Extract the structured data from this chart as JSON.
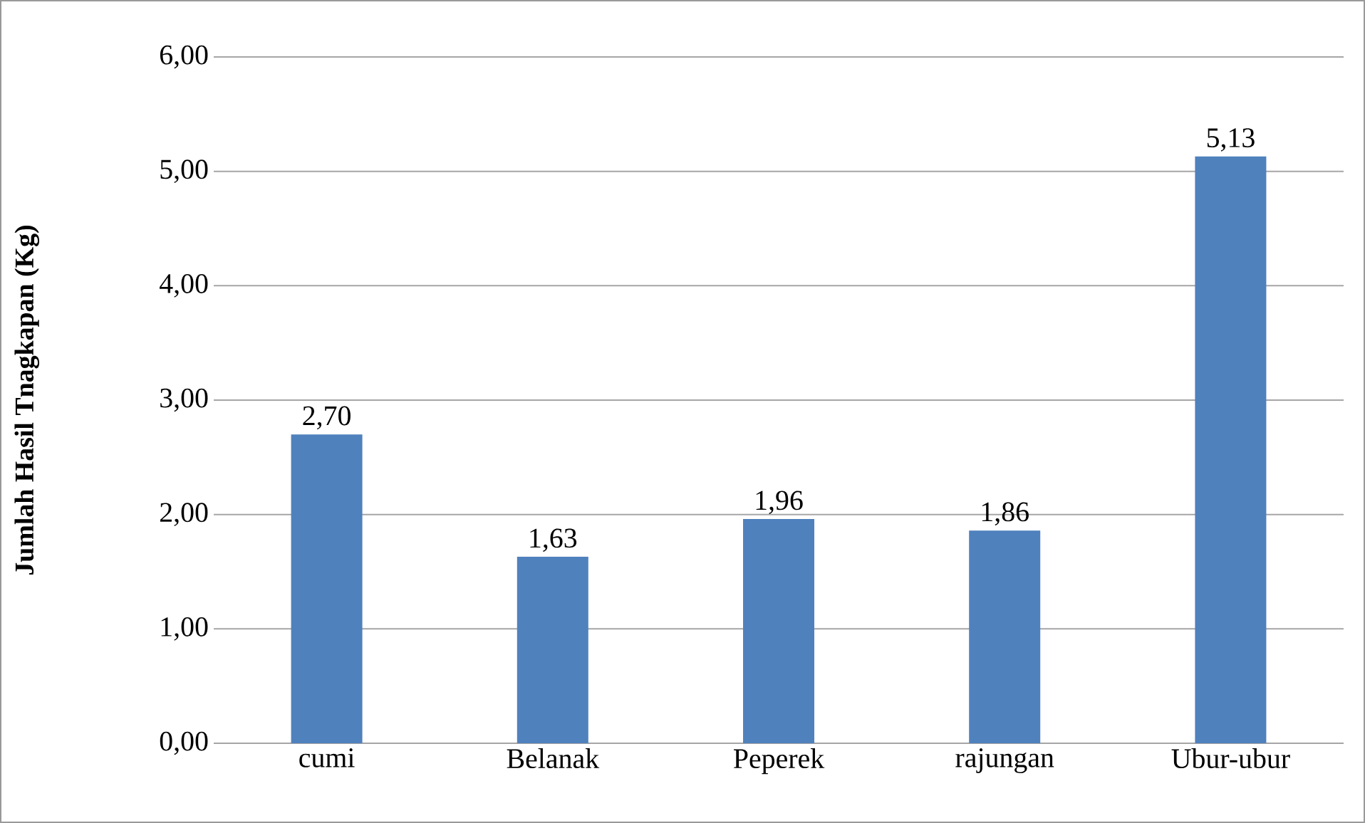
{
  "chart_data": {
    "type": "bar",
    "ylabel": "Jumlah Hasil Tnagkapan (Kg)",
    "categories": [
      "cumi",
      "Belanak",
      "Peperek",
      "rajungan",
      "Ubur-ubur"
    ],
    "values": [
      2.7,
      1.63,
      1.96,
      1.86,
      5.13
    ],
    "value_labels": [
      "2,70",
      "1,63",
      "1,96",
      "1,86",
      "5,13"
    ],
    "color": "#4f81bd",
    "ylim": [
      0,
      6
    ],
    "yticks": [
      {
        "value": 0,
        "label": "0,00"
      },
      {
        "value": 1,
        "label": "1,00"
      },
      {
        "value": 2,
        "label": "2,00"
      },
      {
        "value": 3,
        "label": "3,00"
      },
      {
        "value": 4,
        "label": "4,00"
      },
      {
        "value": 5,
        "label": "5,00"
      },
      {
        "value": 6,
        "label": "6,00"
      }
    ],
    "grid": "y"
  }
}
